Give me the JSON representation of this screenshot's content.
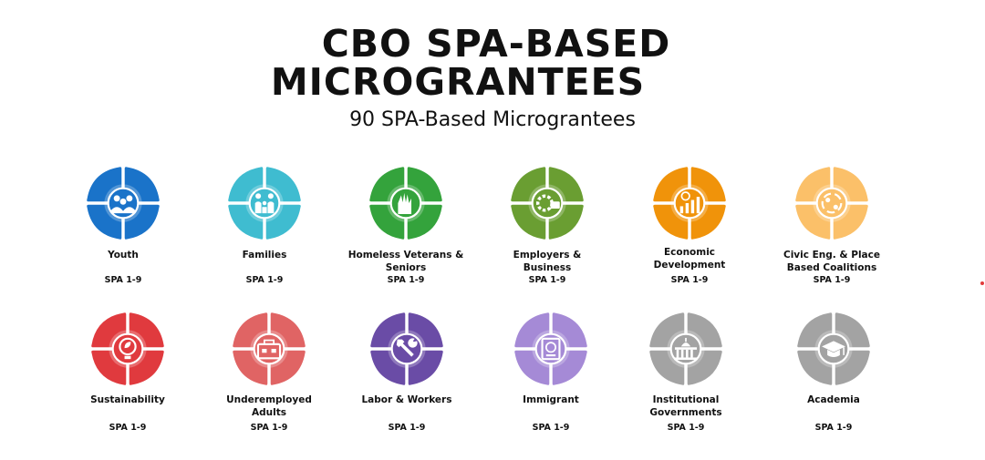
{
  "title_line1": "CBO SPA-BASED",
  "title_line2": "MICROGRANTEES",
  "subtitle": "90 SPA-Based Micrograntees",
  "subtitle_text": "90 SPA-Based Micrograntees",
  "items": [
    {
      "label": "Youth",
      "spa": "SPA 1-9",
      "color": "#1a73c9",
      "icon": "youth-group-icon"
    },
    {
      "label": "Families",
      "spa": "SPA 1-9",
      "color": "#3fbcd0",
      "icon": "family-icon"
    },
    {
      "label": "Homeless Veterans & Seniors",
      "spa": "SPA 1-9",
      "color": "#34a33c",
      "icon": "helping-hand-icon"
    },
    {
      "label": "Employers & Business",
      "spa": "SPA 1-9",
      "color": "#6a9e32",
      "icon": "business-gear-icon"
    },
    {
      "label": "Economic Development",
      "spa": "SPA 1-9",
      "color": "#f0930a",
      "icon": "growth-chart-icon"
    },
    {
      "label": "Civic Eng. & Place Based Coalitions",
      "spa": "SPA 1-9",
      "color": "#fbc069",
      "icon": "community-network-icon"
    },
    {
      "label": "Sustainability",
      "spa": "SPA 1-9",
      "color": "#e03a3e",
      "icon": "eco-bulb-icon"
    },
    {
      "label": "Underemployed Adults",
      "spa": "SPA 1-9",
      "color": "#e06464",
      "icon": "toolbox-icon"
    },
    {
      "label": "Labor & Workers",
      "spa": "SPA 1-9",
      "color": "#6a4ca6",
      "icon": "tools-icon"
    },
    {
      "label": "Immigrant",
      "spa": "SPA 1-9",
      "color": "#a58ad6",
      "icon": "passport-icon"
    },
    {
      "label": "Institutional Governments",
      "spa": "SPA 1-9",
      "color": "#a3a3a3",
      "icon": "capitol-building-icon"
    },
    {
      "label": "Academia",
      "spa": "SPA 1-9",
      "color": "#a3a3a3",
      "icon": "graduation-cap-icon"
    }
  ]
}
